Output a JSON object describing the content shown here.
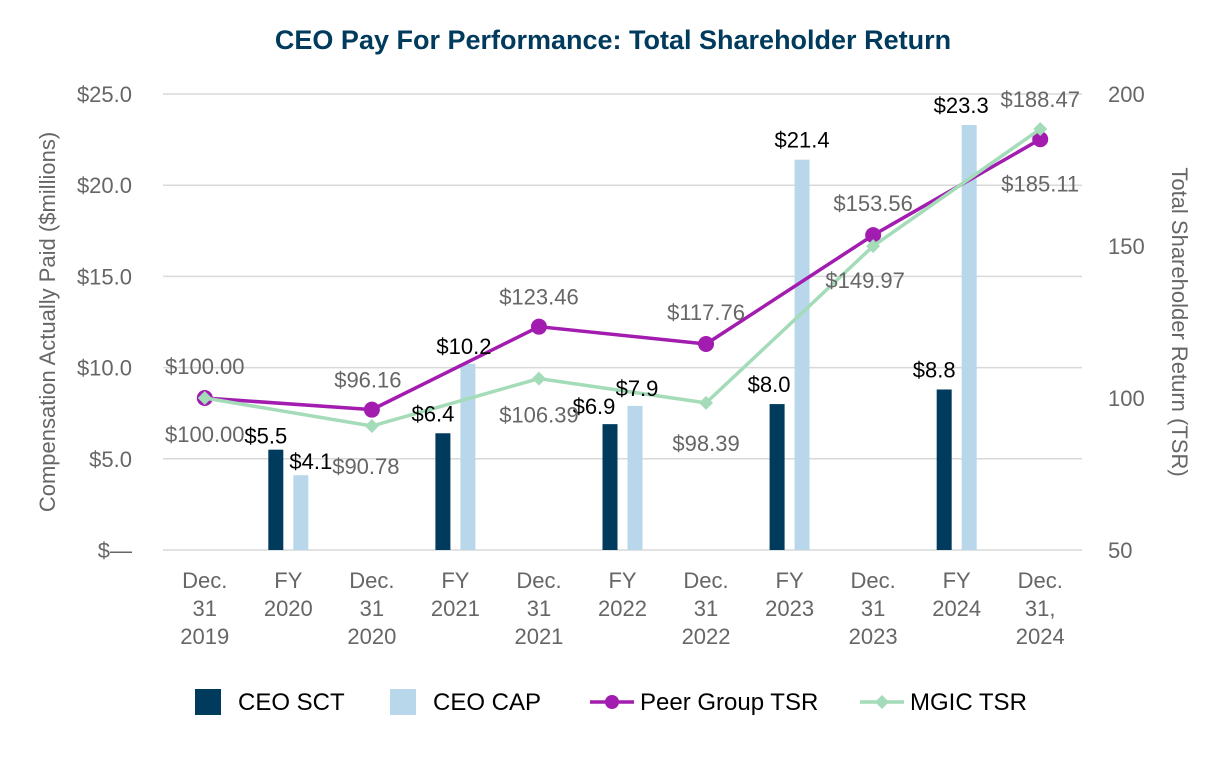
{
  "chart_data": {
    "type": "bar",
    "title": "CEO Pay For Performance: Total Shareholder Return",
    "ylabel_left": "Compensation Actually Paid ($millions)",
    "ylabel_right": "Total Shareholder Return (TSR)",
    "categories": [
      [
        "Dec.",
        "31",
        "2019"
      ],
      [
        "FY",
        "2020"
      ],
      [
        "Dec.",
        "31",
        "2020"
      ],
      [
        "FY",
        "2021"
      ],
      [
        "Dec.",
        "31",
        "2021"
      ],
      [
        "FY",
        "2022"
      ],
      [
        "Dec.",
        "31",
        "2022"
      ],
      [
        "FY",
        "2023"
      ],
      [
        "Dec.",
        "31",
        "2023"
      ],
      [
        "FY",
        "2024"
      ],
      [
        "Dec.",
        "31,",
        "2024"
      ]
    ],
    "ylim_left": [
      0,
      25
    ],
    "yticks_left": [
      {
        "value": 0,
        "label": "$—"
      },
      {
        "value": 5,
        "label": "$5.0"
      },
      {
        "value": 10,
        "label": "$10.0"
      },
      {
        "value": 15,
        "label": "$15.0"
      },
      {
        "value": 20,
        "label": "$20.0"
      },
      {
        "value": 25,
        "label": "$25.0"
      }
    ],
    "ylim_right": [
      50,
      200
    ],
    "yticks_right": [
      {
        "value": 50,
        "label": "50"
      },
      {
        "value": 100,
        "label": "100"
      },
      {
        "value": 150,
        "label": "150"
      },
      {
        "value": 200,
        "label": "200"
      }
    ],
    "grid": true,
    "series": [
      {
        "name": "CEO SCT",
        "kind": "bar",
        "axis": "left",
        "color": "#003a5d",
        "points": [
          {
            "cat": 1,
            "value": 5.5,
            "label": "$5.5"
          },
          {
            "cat": 3,
            "value": 6.4,
            "label": "$6.4"
          },
          {
            "cat": 5,
            "value": 6.9,
            "label": "$6.9"
          },
          {
            "cat": 7,
            "value": 8.0,
            "label": "$8.0"
          },
          {
            "cat": 9,
            "value": 8.8,
            "label": "$8.8"
          }
        ]
      },
      {
        "name": "CEO CAP",
        "kind": "bar",
        "axis": "left",
        "color": "#b9d7ea",
        "points": [
          {
            "cat": 1,
            "value": 4.1,
            "label": "$4.1"
          },
          {
            "cat": 3,
            "value": 10.2,
            "label": "$10.2"
          },
          {
            "cat": 5,
            "value": 7.9,
            "label": "$7.9"
          },
          {
            "cat": 7,
            "value": 21.4,
            "label": "$21.4"
          },
          {
            "cat": 9,
            "value": 23.3,
            "label": "$23.3"
          }
        ]
      },
      {
        "name": "Peer Group TSR",
        "kind": "line",
        "axis": "right",
        "color": "#a21caf",
        "marker": "circle",
        "points": [
          {
            "cat": 0,
            "value": 100.0,
            "label": "$100.00"
          },
          {
            "cat": 2,
            "value": 96.16,
            "label": "$96.16"
          },
          {
            "cat": 4,
            "value": 123.46,
            "label": "$123.46"
          },
          {
            "cat": 6,
            "value": 117.76,
            "label": "$117.76"
          },
          {
            "cat": 8,
            "value": 153.56,
            "label": "$153.56"
          },
          {
            "cat": 10,
            "value": 185.11,
            "label": "$185.11"
          }
        ]
      },
      {
        "name": "MGIC TSR",
        "kind": "line",
        "axis": "right",
        "color": "#a4dbb9",
        "marker": "diamond",
        "points": [
          {
            "cat": 0,
            "value": 100.0,
            "label": "$100.00"
          },
          {
            "cat": 2,
            "value": 90.78,
            "label": "$90.78"
          },
          {
            "cat": 4,
            "value": 106.39,
            "label": "$106.39"
          },
          {
            "cat": 6,
            "value": 98.39,
            "label": "$98.39"
          },
          {
            "cat": 8,
            "value": 149.97,
            "label": "$149.97"
          },
          {
            "cat": 10,
            "value": 188.47,
            "label": "$188.47"
          }
        ]
      }
    ],
    "legend": "bottom",
    "colors": {
      "title": "#003a5d",
      "axis_text": "#666666",
      "grid": "#d9d9d9",
      "label_dark": "#000000",
      "label_gray": "#666666"
    }
  }
}
